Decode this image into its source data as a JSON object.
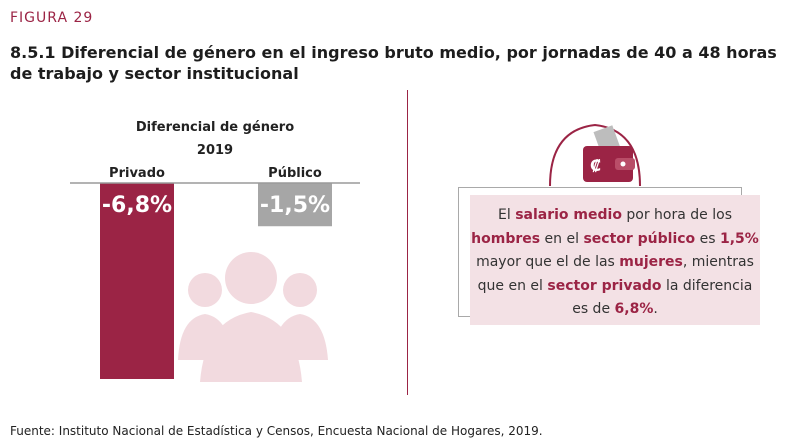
{
  "figure_label": "FIGURA 29",
  "title": "8.5.1 Diferencial de género en el ingreso bruto medio, por jornadas de 40 a 48 horas de trabajo y sector institucional",
  "chart_heading": "Diferencial de género",
  "chart_year": "2019",
  "note": {
    "parts": [
      {
        "t": "El ",
        "b": false
      },
      {
        "t": "salario medio",
        "b": true
      },
      {
        "t": " por hora de los ",
        "b": false
      },
      {
        "t": "hombres",
        "b": true
      },
      {
        "t": " en el ",
        "b": false
      },
      {
        "t": "sector público",
        "b": true
      },
      {
        "t": " es ",
        "b": false
      },
      {
        "t": "1,5%",
        "b": true
      },
      {
        "t": " mayor que el de las ",
        "b": false
      },
      {
        "t": "mujeres",
        "b": true
      },
      {
        "t": ", mientras que en el ",
        "b": false
      },
      {
        "t": "sector privado",
        "b": true
      },
      {
        "t": " la diferencia es de ",
        "b": false
      },
      {
        "t": "6,8%",
        "b": true
      },
      {
        "t": ".",
        "b": false
      }
    ]
  },
  "source": "Fuente: Instituto Nacional de Estadística y Censos, Encuesta Nacional de Hogares, 2019.",
  "icons": [
    "people-silhouette-icon",
    "wallet-colon-icon"
  ],
  "colors": {
    "privado": "#9b2445",
    "publico": "#a6a6a6",
    "accent": "#9b2445",
    "note_bg": "#f3e1e5"
  },
  "chart_data": {
    "type": "bar",
    "categories": [
      "Privado",
      "Público"
    ],
    "values": [
      -6.8,
      -1.5
    ],
    "value_labels": [
      "-6,8%",
      "-1,5%"
    ],
    "title": "Diferencial de género",
    "subtitle": "2019",
    "ylim": [
      -9,
      0
    ]
  }
}
